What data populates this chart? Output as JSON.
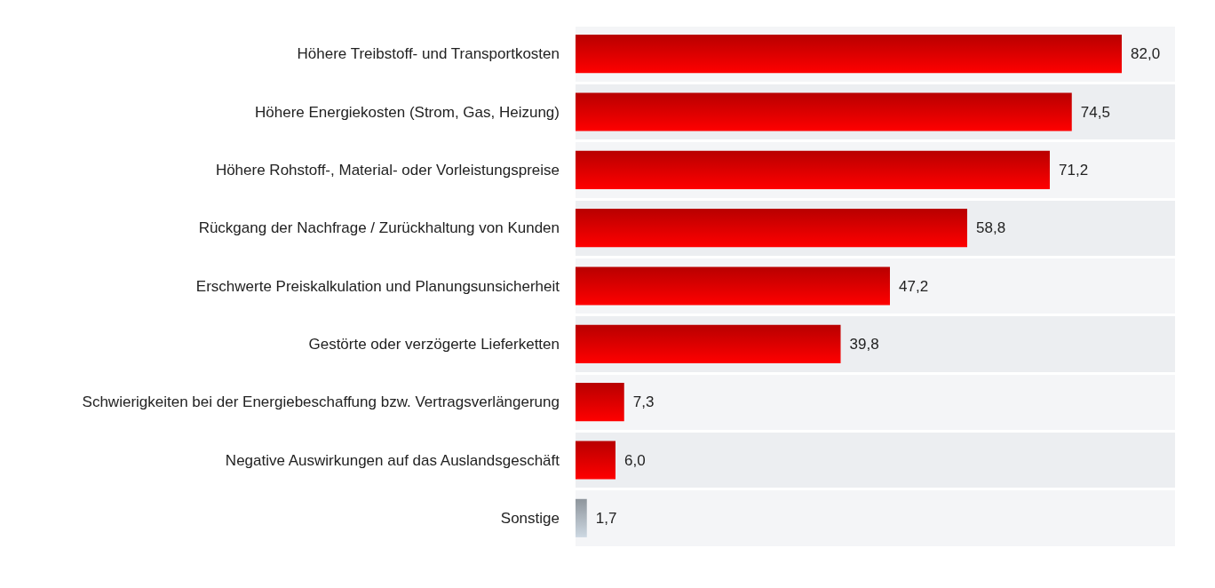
{
  "chart_data": {
    "type": "bar",
    "orientation": "horizontal",
    "categories": [
      "Höhere Treibstoff- und Transportkosten",
      "Höhere Energiekosten (Strom, Gas, Heizung)",
      "Höhere Rohstoff-, Material- oder Vorleistungspreise",
      "Rückgang der Nachfrage / Zurückhaltung von Kunden",
      "Erschwerte Preiskalkulation und Planungsunsicherheit",
      "Gestörte oder verzögerte Lieferketten",
      "Schwierigkeiten bei der Energiebeschaffung bzw. Vertragsverlängerung",
      "Negative Auswirkungen auf das Auslandsgeschäft",
      "Sonstige"
    ],
    "values": [
      82.0,
      74.5,
      71.2,
      58.8,
      47.2,
      39.8,
      7.3,
      6.0,
      1.7
    ],
    "value_labels": [
      "82,0",
      "74,5",
      "71,2",
      "58,8",
      "47,2",
      "39,8",
      "7,3",
      "6,0",
      "1,7"
    ],
    "colors": [
      "#b80000",
      "#b80000",
      "#b80000",
      "#b80000",
      "#b80000",
      "#b80000",
      "#b80000",
      "#b80000",
      "#8e959c"
    ],
    "xlim": [
      0,
      90
    ],
    "tick_labels": "y"
  }
}
